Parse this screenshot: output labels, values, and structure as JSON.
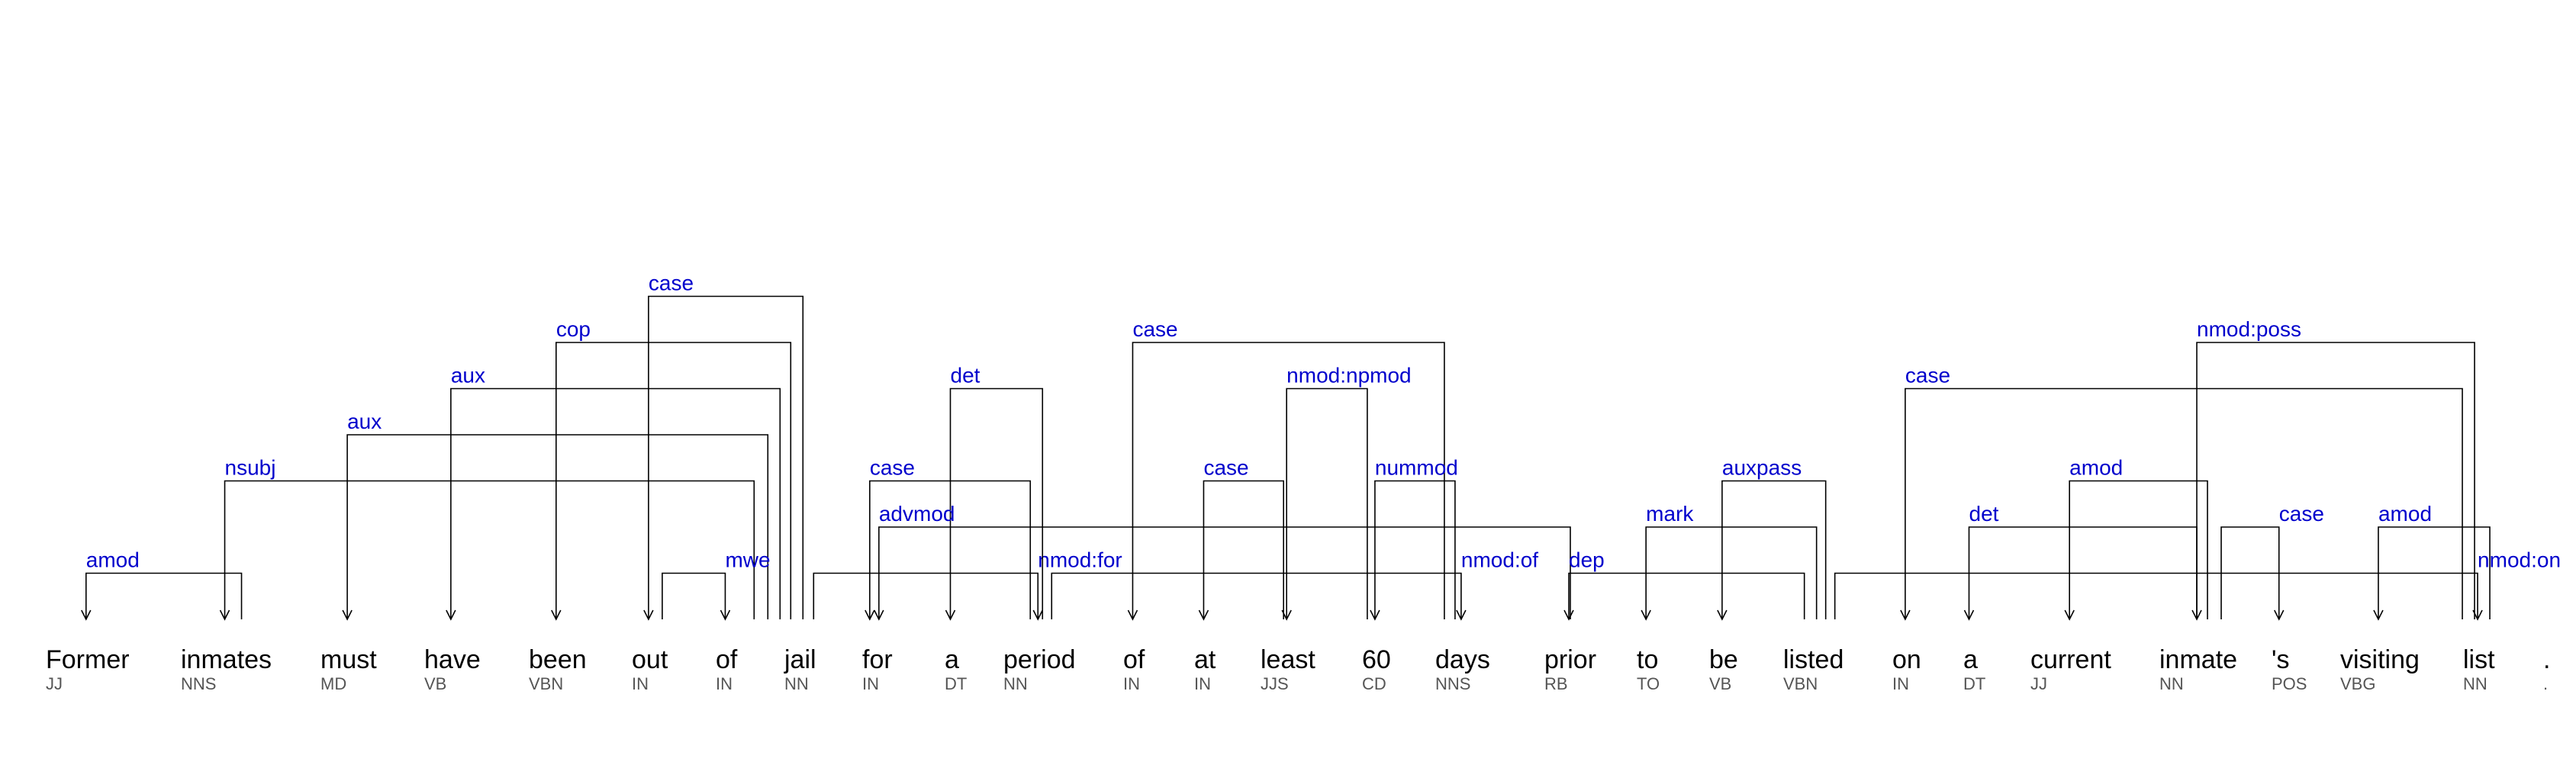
{
  "tokens": [
    {
      "word": "Former",
      "tag": "JJ"
    },
    {
      "word": "inmates",
      "tag": "NNS"
    },
    {
      "word": "must",
      "tag": "MD"
    },
    {
      "word": "have",
      "tag": "VB"
    },
    {
      "word": "been",
      "tag": "VBN"
    },
    {
      "word": "out",
      "tag": "IN"
    },
    {
      "word": "of",
      "tag": "IN"
    },
    {
      "word": "jail",
      "tag": "NN"
    },
    {
      "word": "for",
      "tag": "IN"
    },
    {
      "word": "a",
      "tag": "DT"
    },
    {
      "word": "period",
      "tag": "NN"
    },
    {
      "word": "of",
      "tag": "IN"
    },
    {
      "word": "at",
      "tag": "IN"
    },
    {
      "word": "least",
      "tag": "JJS"
    },
    {
      "word": "60",
      "tag": "CD"
    },
    {
      "word": "days",
      "tag": "NNS"
    },
    {
      "word": "prior",
      "tag": "RB"
    },
    {
      "word": "to",
      "tag": "TO"
    },
    {
      "word": "be",
      "tag": "VB"
    },
    {
      "word": "listed",
      "tag": "VBN"
    },
    {
      "word": "on",
      "tag": "IN"
    },
    {
      "word": "a",
      "tag": "DT"
    },
    {
      "word": "current",
      "tag": "JJ"
    },
    {
      "word": "inmate",
      "tag": "NN"
    },
    {
      "word": "'s",
      "tag": "POS"
    },
    {
      "word": "visiting",
      "tag": "VBG"
    },
    {
      "word": "list",
      "tag": "NN"
    },
    {
      "word": ".",
      "tag": "."
    }
  ],
  "arcs": [
    {
      "label": "amod",
      "head": 1,
      "dep": 0
    },
    {
      "label": "nsubj",
      "head": 7,
      "dep": 1
    },
    {
      "label": "aux",
      "head": 7,
      "dep": 2
    },
    {
      "label": "aux",
      "head": 7,
      "dep": 3
    },
    {
      "label": "cop",
      "head": 7,
      "dep": 4
    },
    {
      "label": "case",
      "head": 7,
      "dep": 5
    },
    {
      "label": "mwe",
      "head": 5,
      "dep": 6
    },
    {
      "label": "nmod:for",
      "head": 7,
      "dep": 10
    },
    {
      "label": "case",
      "head": 10,
      "dep": 8
    },
    {
      "label": "det",
      "head": 10,
      "dep": 9
    },
    {
      "label": "advmod",
      "head": 16,
      "dep": 8
    },
    {
      "label": "nmod:of",
      "head": 10,
      "dep": 15
    },
    {
      "label": "case",
      "head": 15,
      "dep": 11
    },
    {
      "label": "case",
      "head": 13,
      "dep": 12
    },
    {
      "label": "nmod:npmod",
      "head": 14,
      "dep": 13
    },
    {
      "label": "nummod",
      "head": 15,
      "dep": 14
    },
    {
      "label": "dep",
      "head": 19,
      "dep": 16
    },
    {
      "label": "mark",
      "head": 19,
      "dep": 17
    },
    {
      "label": "auxpass",
      "head": 19,
      "dep": 18
    },
    {
      "label": "nmod:on",
      "head": 19,
      "dep": 26
    },
    {
      "label": "case",
      "head": 26,
      "dep": 20
    },
    {
      "label": "det",
      "head": 23,
      "dep": 21
    },
    {
      "label": "amod",
      "head": 23,
      "dep": 22
    },
    {
      "label": "nmod:poss",
      "head": 26,
      "dep": 23
    },
    {
      "label": "case",
      "head": 23,
      "dep": 24
    },
    {
      "label": "amod",
      "head": 26,
      "dep": 25
    }
  ],
  "colors": {
    "label": "#0000cc",
    "line": "#000000",
    "tag": "#555555"
  }
}
